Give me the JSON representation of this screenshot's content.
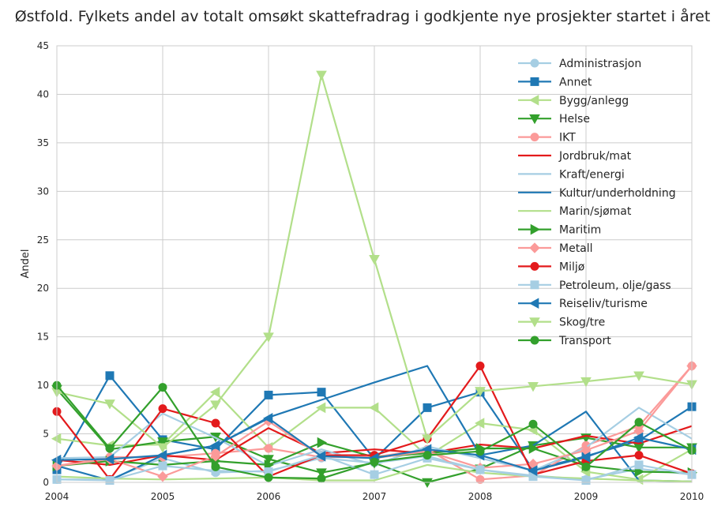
{
  "chart_data": {
    "type": "line",
    "title": "Østfold. Fylkets andel av totalt omsøkt skattefradrag i godkjente nye prosjekter startet i året",
    "xlabel": "",
    "ylabel": "Andel",
    "xlim": [
      2004,
      2010
    ],
    "ylim": [
      0,
      45
    ],
    "xticks": [
      "2004",
      "2005",
      "2006",
      "2007",
      "2008",
      "2009",
      "2010"
    ],
    "yticks": [
      "0",
      "5",
      "10",
      "15",
      "20",
      "25",
      "30",
      "35",
      "40",
      "45"
    ],
    "grid": true,
    "legend_position": "top-right",
    "series": [
      {
        "name": "Administrasjon",
        "color": "#a6cee3",
        "marker": "circle",
        "x": [
          2004,
          2004.5,
          2005,
          2005.5,
          2006,
          2006.5,
          2007,
          2007.5,
          2008,
          2008.5,
          2009,
          2009.5,
          2010
        ],
        "y": [
          0.3,
          0.3,
          2.5,
          1.0,
          1.2,
          2.5,
          2.0,
          2.7,
          1.3,
          0.7,
          0.3,
          1.4,
          0.8
        ]
      },
      {
        "name": "Annet",
        "color": "#1f78b4",
        "marker": "square",
        "x": [
          2004,
          2004.5,
          2005,
          2005.5,
          2006,
          2006.5,
          2007,
          2007.5,
          2008,
          2008.5,
          2009,
          2009.5,
          2010
        ],
        "y": [
          1.3,
          11.0,
          4.4,
          3.4,
          9.0,
          9.3,
          2.4,
          7.7,
          9.3,
          1.3,
          2.7,
          4.3,
          7.8
        ]
      },
      {
        "name": "Bygg/anlegg",
        "color": "#b2df8a",
        "marker": "triangle-left",
        "x": [
          2004,
          2004.5,
          2005,
          2005.5,
          2006,
          2006.5,
          2007,
          2007.5,
          2008,
          2008.5,
          2009,
          2009.5,
          2010
        ],
        "y": [
          4.5,
          3.8,
          3.9,
          9.3,
          3.6,
          7.7,
          7.7,
          2.7,
          6.1,
          5.4,
          1.1,
          0.3,
          3.4
        ]
      },
      {
        "name": "Helse",
        "color": "#33a02c",
        "marker": "triangle-down",
        "x": [
          2004,
          2004.5,
          2005,
          2005.5,
          2006,
          2006.5,
          2007,
          2007.5,
          2008,
          2008.5,
          2009,
          2009.5,
          2010
        ],
        "y": [
          9.6,
          3.4,
          4.2,
          4.7,
          2.4,
          1.0,
          2.0,
          0.0,
          1.4,
          3.8,
          4.6,
          3.6,
          3.6
        ]
      },
      {
        "name": "IKT",
        "color": "#fb9a99",
        "marker": "circle",
        "x": [
          2004,
          2004.5,
          2005,
          2005.5,
          2006,
          2006.5,
          2007,
          2007.5,
          2008,
          2008.5,
          2009,
          2009.5,
          2010
        ],
        "y": [
          1.7,
          2.6,
          2.6,
          3.0,
          3.5,
          2.6,
          2.6,
          3.4,
          0.3,
          0.7,
          3.8,
          5.8,
          12.0
        ]
      },
      {
        "name": "Jordbruk/mat",
        "color": "#e31a1c",
        "marker": "none",
        "x": [
          2004,
          2004.5,
          2005,
          2005.5,
          2006,
          2006.5,
          2007,
          2007.5,
          2008,
          2008.5,
          2009,
          2009.5,
          2010
        ],
        "y": [
          2.3,
          1.8,
          2.8,
          2.3,
          5.6,
          3.0,
          3.4,
          3.0,
          3.9,
          3.5,
          4.8,
          4.0,
          5.8
        ]
      },
      {
        "name": "Kraft/energi",
        "color": "#a6cee3",
        "marker": "none",
        "x": [
          2004,
          2004.5,
          2005,
          2005.5,
          2006,
          2006.5,
          2007,
          2007.5,
          2008,
          2008.5,
          2009,
          2009.5,
          2010
        ],
        "y": [
          2.5,
          2.6,
          7.1,
          4.6,
          1.7,
          3.4,
          1.8,
          3.7,
          2.5,
          1.2,
          3.6,
          7.7,
          4.5
        ]
      },
      {
        "name": "Kultur/underholdning",
        "color": "#1f78b4",
        "marker": "none",
        "x": [
          2004,
          2004.5,
          2005,
          2005.5,
          2006,
          2006.5,
          2007,
          2007.5,
          2008,
          2008.5,
          2009,
          2009.5,
          2010
        ],
        "y": [
          1.7,
          0.2,
          2.8,
          3.8,
          6.7,
          8.5,
          10.3,
          12.0,
          2.8,
          3.8,
          7.3,
          0.2,
          0.1
        ]
      },
      {
        "name": "Marin/sjømat",
        "color": "#b2df8a",
        "marker": "none",
        "x": [
          2004,
          2004.5,
          2005,
          2005.5,
          2006,
          2006.5,
          2007,
          2007.5,
          2008,
          2008.5,
          2009,
          2009.5,
          2010
        ],
        "y": [
          0.6,
          0.4,
          0.3,
          0.4,
          0.5,
          0.2,
          0.2,
          1.8,
          1.0,
          0.6,
          0.4,
          0.2,
          0.1
        ]
      },
      {
        "name": "Maritim",
        "color": "#33a02c",
        "marker": "triangle-right",
        "x": [
          2004,
          2004.5,
          2005,
          2005.5,
          2006,
          2006.5,
          2007,
          2007.5,
          2008,
          2008.5,
          2009,
          2009.5,
          2010
        ],
        "y": [
          1.7,
          2.2,
          1.8,
          2.2,
          1.8,
          4.1,
          2.6,
          3.0,
          3.5,
          3.5,
          1.7,
          1.1,
          1.0
        ]
      },
      {
        "name": "Metall",
        "color": "#fb9a99",
        "marker": "diamond",
        "x": [
          2004,
          2004.5,
          2005,
          2005.5,
          2006,
          2006.5,
          2007,
          2007.5,
          2008,
          2008.5,
          2009,
          2009.5,
          2010
        ],
        "y": [
          1.7,
          2.4,
          0.6,
          2.7,
          6.3,
          2.7,
          2.5,
          3.2,
          1.5,
          1.9,
          3.3,
          5.3,
          12.0
        ]
      },
      {
        "name": "Miljø",
        "color": "#e31a1c",
        "marker": "circle",
        "x": [
          2004,
          2004.5,
          2005,
          2005.5,
          2006,
          2006.5,
          2007,
          2007.5,
          2008,
          2008.5,
          2009,
          2009.5,
          2010
        ],
        "y": [
          7.3,
          0.3,
          7.6,
          6.1,
          0.6,
          2.8,
          2.8,
          4.5,
          12.0,
          0.8,
          2.2,
          2.8,
          0.9
        ]
      },
      {
        "name": "Petroleum, olje/gass",
        "color": "#a6cee3",
        "marker": "square",
        "x": [
          2004,
          2004.5,
          2005,
          2005.5,
          2006,
          2006.5,
          2007,
          2007.5,
          2008,
          2008.5,
          2009,
          2009.5,
          2010
        ],
        "y": [
          0.3,
          0.2,
          1.7,
          1.2,
          1.1,
          2.8,
          0.8,
          2.5,
          1.3,
          0.6,
          0.2,
          1.8,
          0.8
        ]
      },
      {
        "name": "Reiseliv/turisme",
        "color": "#1f78b4",
        "marker": "triangle-left",
        "x": [
          2004,
          2004.5,
          2005,
          2005.5,
          2006,
          2006.5,
          2007,
          2007.5,
          2008,
          2008.5,
          2009,
          2009.5,
          2010
        ],
        "y": [
          2.3,
          2.4,
          2.8,
          3.8,
          6.6,
          2.7,
          2.5,
          3.4,
          2.8,
          1.2,
          2.6,
          4.6,
          3.4
        ]
      },
      {
        "name": "Skog/tre",
        "color": "#b2df8a",
        "marker": "triangle-down",
        "x": [
          2004,
          2004.5,
          2005,
          2005.5,
          2006,
          2006.5,
          2007,
          2007.5,
          2008,
          2008.5,
          2009,
          2009.5,
          2010
        ],
        "y": [
          9.3,
          8.1,
          3.6,
          8.0,
          15.0,
          42.0,
          23.0,
          4.5,
          9.4,
          9.9,
          10.4,
          11.0,
          10.1
        ]
      },
      {
        "name": "Transport",
        "color": "#33a02c",
        "marker": "circle",
        "x": [
          2004,
          2004.5,
          2005,
          2005.5,
          2006,
          2006.5,
          2007,
          2007.5,
          2008,
          2008.5,
          2009,
          2009.5,
          2010
        ],
        "y": [
          10.0,
          3.5,
          9.8,
          1.6,
          0.5,
          0.4,
          2.1,
          2.8,
          3.2,
          6.0,
          1.6,
          6.2,
          3.3
        ]
      }
    ]
  }
}
